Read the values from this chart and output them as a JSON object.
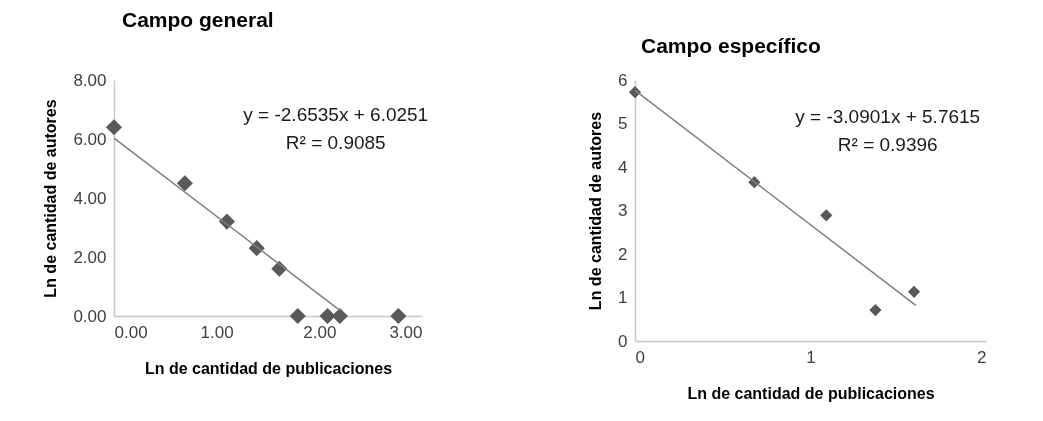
{
  "chart_data": [
    {
      "type": "scatter",
      "title": "Campo general",
      "xlabel": "Ln de cantidad de publicaciones",
      "ylabel": "Ln de cantidad de autores",
      "xlim": [
        0,
        3
      ],
      "xticks": [
        {
          "value": 0,
          "label": "0.00"
        },
        {
          "value": 1,
          "label": "1.00"
        },
        {
          "value": 2,
          "label": "2.00"
        },
        {
          "value": 3,
          "label": "3.00"
        }
      ],
      "ylim": [
        0,
        8
      ],
      "yticks": [
        {
          "value": 0,
          "label": "0.00"
        },
        {
          "value": 2,
          "label": "2.00"
        },
        {
          "value": 4,
          "label": "4.00"
        },
        {
          "value": 6,
          "label": "6.00"
        },
        {
          "value": 8,
          "label": "8.00"
        }
      ],
      "grid": false,
      "series": [
        {
          "marker": "diamond",
          "color": "#595959",
          "x": [
            0,
            0.69,
            1.1,
            1.39,
            1.61,
            1.79,
            2.08,
            2.2,
            2.77
          ],
          "values": [
            6.4,
            4.5,
            3.2,
            2.3,
            1.6,
            0,
            0,
            0,
            0
          ]
        },
        {
          "type": "line",
          "marker": "none",
          "color": "#7f7f7f",
          "x": [
            0,
            2.2
          ],
          "values": [
            6.03,
            0.19
          ]
        }
      ],
      "annotations": [
        "y = -2.6535x + 6.0251",
        "R² = 0.9085"
      ]
    },
    {
      "type": "scatter",
      "title": "Campo específico",
      "xlabel": "Ln de cantidad de publicaciones",
      "ylabel": "Ln de cantidad de autores",
      "xlim": [
        0,
        2
      ],
      "xticks": [
        0,
        1,
        2
      ],
      "ylim": [
        0,
        6
      ],
      "yticks": [
        0,
        1,
        2,
        3,
        4,
        5,
        6
      ],
      "grid": false,
      "series": [
        {
          "marker": "diamond",
          "color": "#595959",
          "x": [
            0,
            0.68,
            1.09,
            1.37,
            1.59
          ],
          "values": [
            5.72,
            3.65,
            2.89,
            0.71,
            1.13
          ]
        },
        {
          "type": "line",
          "marker": "none",
          "color": "#7f7f7f",
          "x": [
            0,
            1.6
          ],
          "values": [
            5.76,
            0.82
          ]
        }
      ],
      "annotations": [
        "y = -3.0901x + 5.7615",
        "R² = 0.9396"
      ]
    }
  ]
}
